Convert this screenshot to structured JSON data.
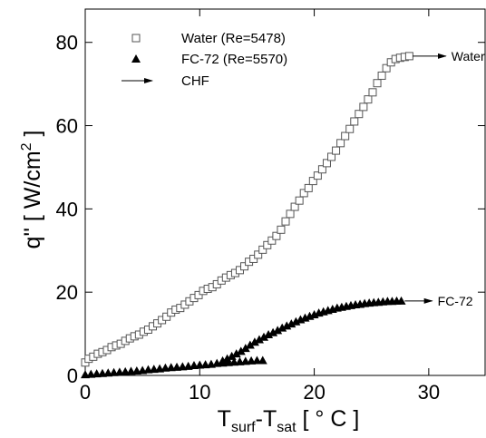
{
  "chart_data": {
    "type": "scatter",
    "xlabel": {
      "main": "T",
      "sub1": "surf",
      "mid": "-T",
      "sub2": "sat",
      "tail": " [ ° C ]"
    },
    "ylabel": {
      "main": "q''  [ W/cm",
      "sup": "2",
      "tail": " ]"
    },
    "xlim": [
      0,
      35
    ],
    "ylim": [
      0,
      88
    ],
    "x_ticks": [
      0,
      10,
      20,
      30
    ],
    "x_tick_labels": [
      "0",
      "10",
      "20",
      "30"
    ],
    "y_ticks": [
      0,
      20,
      40,
      60,
      80
    ],
    "y_tick_labels": [
      "0",
      "20",
      "40",
      "60",
      "80"
    ],
    "grid": false,
    "legend": {
      "placement": "top-left",
      "entries": [
        {
          "label": "Water (Re=5478)",
          "marker": "open-square"
        },
        {
          "label": "FC-72 (Re=5570)",
          "marker": "filled-triangle"
        },
        {
          "label": "CHF",
          "marker": "arrow"
        }
      ]
    },
    "series": [
      {
        "marker": "open-square",
        "color": "#555555",
        "points": [
          [
            0.0,
            3.1
          ],
          [
            0.3,
            4.0
          ],
          [
            0.7,
            4.5
          ],
          [
            1.1,
            5.2
          ],
          [
            1.5,
            5.6
          ],
          [
            1.9,
            6.1
          ],
          [
            2.3,
            6.8
          ],
          [
            2.7,
            7.2
          ],
          [
            3.1,
            7.6
          ],
          [
            3.5,
            8.3
          ],
          [
            3.9,
            8.9
          ],
          [
            4.3,
            9.4
          ],
          [
            4.7,
            9.8
          ],
          [
            5.1,
            10.5
          ],
          [
            5.5,
            11.0
          ],
          [
            5.9,
            11.8
          ],
          [
            6.3,
            12.5
          ],
          [
            6.7,
            13.3
          ],
          [
            7.1,
            14.1
          ],
          [
            7.5,
            15.1
          ],
          [
            7.9,
            15.8
          ],
          [
            8.3,
            16.2
          ],
          [
            8.7,
            17.0
          ],
          [
            9.1,
            17.8
          ],
          [
            9.5,
            18.6
          ],
          [
            9.9,
            19.3
          ],
          [
            10.3,
            20.3
          ],
          [
            10.7,
            20.8
          ],
          [
            11.1,
            21.2
          ],
          [
            11.5,
            21.9
          ],
          [
            11.9,
            22.8
          ],
          [
            12.3,
            23.5
          ],
          [
            12.7,
            24.1
          ],
          [
            13.1,
            24.6
          ],
          [
            13.5,
            25.3
          ],
          [
            13.9,
            26.2
          ],
          [
            14.3,
            27.3
          ],
          [
            14.7,
            28.0
          ],
          [
            15.1,
            29.0
          ],
          [
            15.5,
            30.2
          ],
          [
            15.9,
            31.3
          ],
          [
            16.3,
            32.4
          ],
          [
            16.7,
            33.5
          ],
          [
            17.1,
            35.0
          ],
          [
            17.5,
            37.0
          ],
          [
            17.9,
            38.8
          ],
          [
            18.3,
            40.5
          ],
          [
            18.7,
            42.0
          ],
          [
            19.1,
            43.8
          ],
          [
            19.5,
            45.0
          ],
          [
            19.9,
            46.7
          ],
          [
            20.3,
            48.0
          ],
          [
            20.7,
            49.5
          ],
          [
            21.1,
            51.0
          ],
          [
            21.5,
            52.5
          ],
          [
            21.9,
            54.0
          ],
          [
            22.3,
            55.8
          ],
          [
            22.7,
            57.5
          ],
          [
            23.1,
            59.2
          ],
          [
            23.5,
            61.0
          ],
          [
            23.9,
            62.8
          ],
          [
            24.3,
            64.5
          ],
          [
            24.7,
            66.3
          ],
          [
            25.1,
            68.0
          ],
          [
            25.5,
            70.2
          ],
          [
            25.9,
            72.0
          ],
          [
            26.3,
            73.8
          ],
          [
            26.7,
            75.2
          ],
          [
            27.1,
            76.0
          ],
          [
            27.5,
            76.3
          ],
          [
            27.9,
            76.5
          ],
          [
            28.3,
            76.7
          ]
        ]
      },
      {
        "marker": "filled-triangle",
        "color": "#000000",
        "points": [
          [
            0.0,
            0.2
          ],
          [
            0.5,
            0.3
          ],
          [
            1.0,
            0.4
          ],
          [
            1.5,
            0.5
          ],
          [
            2.0,
            0.6
          ],
          [
            2.5,
            0.7
          ],
          [
            3.0,
            0.8
          ],
          [
            3.5,
            0.9
          ],
          [
            4.0,
            1.0
          ],
          [
            4.5,
            1.1
          ],
          [
            5.0,
            1.2
          ],
          [
            5.5,
            1.4
          ],
          [
            6.0,
            1.5
          ],
          [
            6.5,
            1.6
          ],
          [
            7.0,
            1.8
          ],
          [
            7.5,
            1.9
          ],
          [
            8.0,
            2.0
          ],
          [
            8.5,
            2.1
          ],
          [
            9.0,
            2.2
          ],
          [
            9.5,
            2.4
          ],
          [
            10.0,
            2.5
          ],
          [
            10.5,
            2.6
          ],
          [
            11.0,
            2.7
          ],
          [
            11.5,
            2.9
          ],
          [
            12.0,
            3.0
          ],
          [
            12.5,
            3.1
          ],
          [
            13.0,
            3.2
          ],
          [
            13.5,
            3.3
          ],
          [
            14.0,
            3.4
          ],
          [
            14.5,
            3.5
          ],
          [
            15.0,
            3.6
          ],
          [
            15.5,
            3.6
          ],
          [
            12.0,
            3.5
          ],
          [
            12.4,
            4.0
          ],
          [
            12.8,
            4.6
          ],
          [
            13.2,
            5.2
          ],
          [
            13.6,
            5.8
          ],
          [
            14.0,
            6.5
          ],
          [
            14.4,
            7.3
          ],
          [
            14.8,
            8.0
          ],
          [
            15.2,
            8.6
          ],
          [
            15.6,
            9.2
          ],
          [
            16.0,
            9.8
          ],
          [
            16.4,
            10.3
          ],
          [
            16.8,
            10.8
          ],
          [
            17.2,
            11.4
          ],
          [
            17.6,
            11.9
          ],
          [
            18.0,
            12.4
          ],
          [
            18.4,
            12.9
          ],
          [
            18.8,
            13.4
          ],
          [
            19.2,
            13.8
          ],
          [
            19.6,
            14.2
          ],
          [
            20.0,
            14.6
          ],
          [
            20.4,
            15.0
          ],
          [
            20.8,
            15.3
          ],
          [
            21.2,
            15.6
          ],
          [
            21.6,
            15.9
          ],
          [
            22.0,
            16.2
          ],
          [
            22.4,
            16.4
          ],
          [
            22.8,
            16.6
          ],
          [
            23.2,
            16.8
          ],
          [
            23.6,
            17.0
          ],
          [
            24.0,
            17.1
          ],
          [
            24.4,
            17.3
          ],
          [
            24.8,
            17.4
          ],
          [
            25.2,
            17.5
          ],
          [
            25.6,
            17.6
          ],
          [
            26.0,
            17.7
          ],
          [
            26.4,
            17.8
          ],
          [
            26.8,
            17.8
          ],
          [
            27.2,
            17.9
          ],
          [
            27.6,
            17.9
          ]
        ]
      }
    ],
    "chf_arrows": [
      {
        "label": "Water",
        "from": [
          28.6,
          76.7
        ],
        "to": [
          31.5,
          76.7
        ]
      },
      {
        "label": "FC-72",
        "from": [
          27.9,
          17.9
        ],
        "to": [
          30.3,
          17.9
        ]
      }
    ]
  }
}
